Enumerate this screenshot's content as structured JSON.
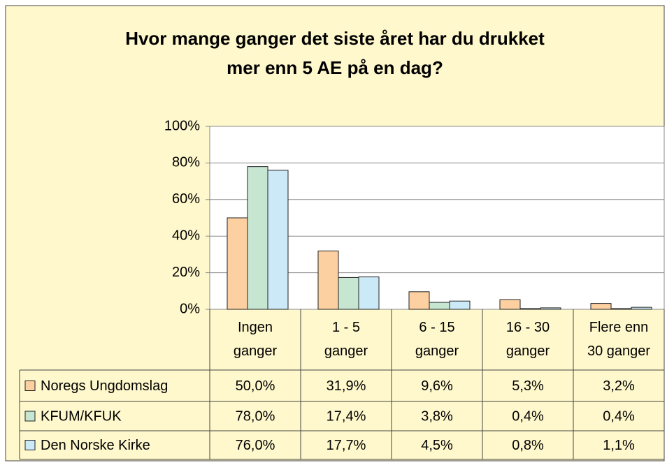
{
  "chart_data": {
    "type": "bar",
    "title": "Hvor mange ganger det siste året har du drukket\nmer enn 5 AE på en dag?",
    "categories": [
      "Ingen\nganger",
      "1 - 5\nganger",
      "6 - 15\nganger",
      "16 - 30\nganger",
      "Flere enn\n30 ganger"
    ],
    "series": [
      {
        "name": "Noregs Ungdomslag",
        "color": "#fdd0a2",
        "values": [
          50.0,
          31.9,
          9.6,
          5.3,
          3.2
        ],
        "value_labels": [
          "50,0%",
          "31,9%",
          "9,6%",
          "5,3%",
          "3,2%"
        ]
      },
      {
        "name": "KFUM/KFUK",
        "color": "#c6e6d2",
        "values": [
          78.0,
          17.4,
          3.8,
          0.4,
          0.4
        ],
        "value_labels": [
          "78,0%",
          "17,4%",
          "3,8%",
          "0,4%",
          "0,4%"
        ]
      },
      {
        "name": "Den Norske Kirke",
        "color": "#cce9f8",
        "values": [
          76.0,
          17.7,
          4.5,
          0.8,
          1.1
        ],
        "value_labels": [
          "76,0%",
          "17,7%",
          "4,5%",
          "0,8%",
          "1,1%"
        ]
      }
    ],
    "ylim": [
      0,
      100
    ],
    "yticks": [
      {
        "value": 0,
        "label": "0%"
      },
      {
        "value": 20,
        "label": "20%"
      },
      {
        "value": 40,
        "label": "40%"
      },
      {
        "value": 60,
        "label": "60%"
      },
      {
        "value": 80,
        "label": "80%"
      },
      {
        "value": 100,
        "label": "100%"
      }
    ],
    "grid": true
  }
}
